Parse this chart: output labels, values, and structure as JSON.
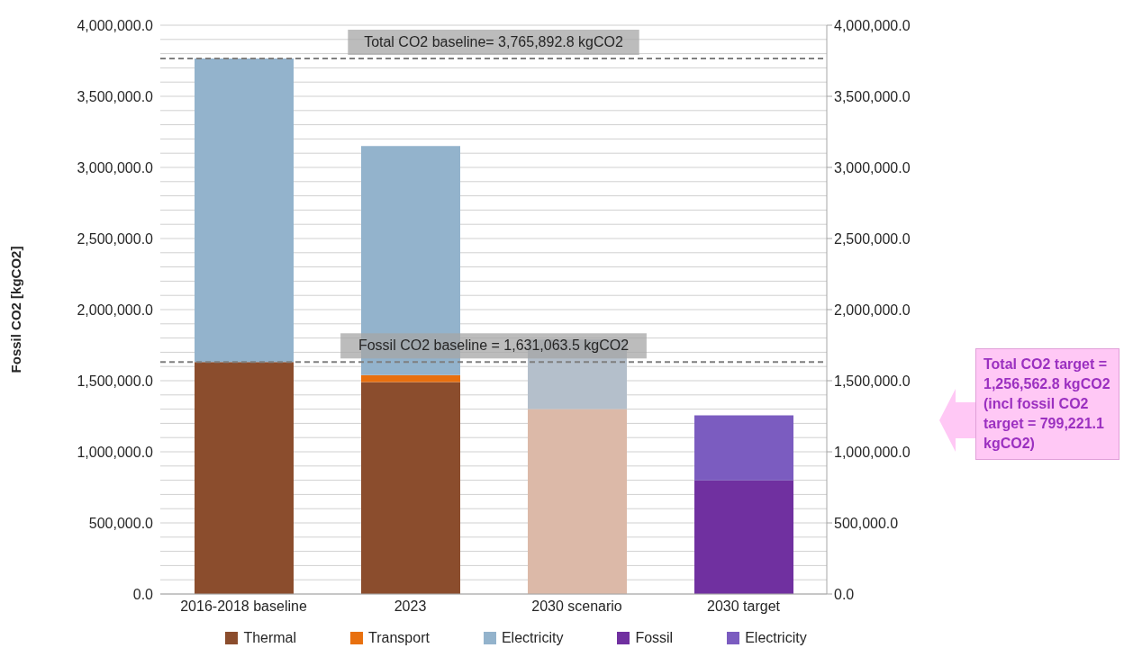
{
  "chart_data": {
    "type": "bar",
    "stacked": true,
    "ylabel": "Fossil CO2 [kgCO2]",
    "categories": [
      "2016-2018 baseline",
      "2023",
      "2030 scenario",
      "2030 target"
    ],
    "series": [
      {
        "name": "Thermal",
        "color": "#8b4d2d",
        "colors": [
          "#8b4d2d",
          "#8b4d2d",
          "#dcb9a8",
          null
        ],
        "values": [
          1631063.5,
          1490000,
          1300000,
          null
        ]
      },
      {
        "name": "Transport",
        "color": "#e8700f",
        "values": [
          null,
          50000,
          null,
          null
        ]
      },
      {
        "name": "Electricity",
        "color": "#93b3cc",
        "colors": [
          "#93b3cc",
          "#93b3cc",
          "#b4bfcb",
          null
        ],
        "values": [
          2134829.3,
          1610000,
          490000,
          null
        ]
      },
      {
        "name": "Fossil",
        "color": "#7030a0",
        "values": [
          null,
          null,
          null,
          799221.1
        ]
      },
      {
        "name": "Electricity",
        "color": "#7b5cc0",
        "values": [
          null,
          null,
          null,
          457341.7
        ]
      }
    ],
    "ylim": [
      0,
      4000000
    ],
    "yticks": [
      {
        "value": 0,
        "label": "0.0"
      },
      {
        "value": 100000,
        "label": null
      },
      {
        "value": 200000,
        "label": null
      },
      {
        "value": 300000,
        "label": null
      },
      {
        "value": 400000,
        "label": null
      },
      {
        "value": 500000,
        "label": "500,000.0"
      },
      {
        "value": 600000,
        "label": null
      },
      {
        "value": 700000,
        "label": null
      },
      {
        "value": 800000,
        "label": null
      },
      {
        "value": 900000,
        "label": null
      },
      {
        "value": 1000000,
        "label": "1,000,000.0"
      },
      {
        "value": 1100000,
        "label": null
      },
      {
        "value": 1200000,
        "label": null
      },
      {
        "value": 1300000,
        "label": null
      },
      {
        "value": 1400000,
        "label": null
      },
      {
        "value": 1500000,
        "label": "1,500,000.0"
      },
      {
        "value": 1600000,
        "label": null
      },
      {
        "value": 1700000,
        "label": null
      },
      {
        "value": 1800000,
        "label": null
      },
      {
        "value": 1900000,
        "label": null
      },
      {
        "value": 2000000,
        "label": "2,000,000.0"
      },
      {
        "value": 2100000,
        "label": null
      },
      {
        "value": 2200000,
        "label": null
      },
      {
        "value": 2300000,
        "label": null
      },
      {
        "value": 2400000,
        "label": null
      },
      {
        "value": 2500000,
        "label": "2,500,000.0"
      },
      {
        "value": 2600000,
        "label": null
      },
      {
        "value": 2700000,
        "label": null
      },
      {
        "value": 2800000,
        "label": null
      },
      {
        "value": 2900000,
        "label": null
      },
      {
        "value": 3000000,
        "label": "3,000,000.0"
      },
      {
        "value": 3100000,
        "label": null
      },
      {
        "value": 3200000,
        "label": null
      },
      {
        "value": 3300000,
        "label": null
      },
      {
        "value": 3400000,
        "label": null
      },
      {
        "value": 3500000,
        "label": "3,500,000.0"
      },
      {
        "value": 3600000,
        "label": null
      },
      {
        "value": 3700000,
        "label": null
      },
      {
        "value": 3800000,
        "label": null
      },
      {
        "value": 3900000,
        "label": null
      },
      {
        "value": 4000000,
        "label": "4,000,000.0"
      }
    ],
    "y2lim": [
      0,
      4000000
    ],
    "y2ticks": [
      {
        "value": 0,
        "label": "0.0"
      },
      {
        "value": 500000,
        "label": "500,000.0"
      },
      {
        "value": 1000000,
        "label": "1,000,000.0"
      },
      {
        "value": 1500000,
        "label": "1,500,000.0"
      },
      {
        "value": 2000000,
        "label": "2,000,000.0"
      },
      {
        "value": 2500000,
        "label": "2,500,000.0"
      },
      {
        "value": 3000000,
        "label": "3,000,000.0"
      },
      {
        "value": 3500000,
        "label": "3,500,000.0"
      },
      {
        "value": 4000000,
        "label": "4,000,000.0"
      }
    ],
    "ref_lines": [
      {
        "axis": "y",
        "value": 3765892.8,
        "label": "Total CO2 baseline= 3,765,892.8 kgCO2",
        "color": "#7f7f7f",
        "line_style": "dashed"
      },
      {
        "axis": "y",
        "value": 1631063.5,
        "label": "Fossil CO2 baseline = 1,631,063.5 kgCO2",
        "color": "#7f7f7f",
        "line_style": "dashed"
      }
    ],
    "annotations": [
      "Total CO2 target = 1,256,562.8 kgCO2 (incl fossil CO2 target = 799,221.1 kgCO2)"
    ],
    "grid": "y",
    "legend": "bottom"
  }
}
